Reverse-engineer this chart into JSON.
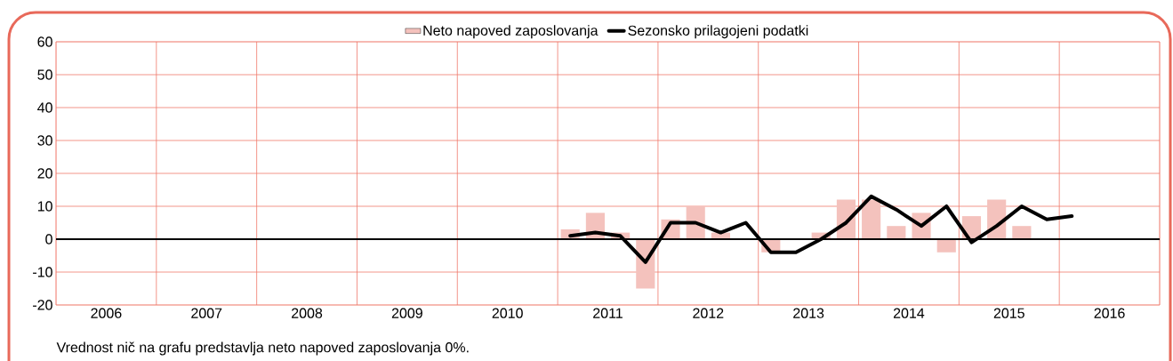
{
  "chart_data": {
    "type": "bar",
    "x": [
      2011.125,
      2011.375,
      2011.625,
      2011.875,
      2012.125,
      2012.375,
      2012.625,
      2012.875,
      2013.125,
      2013.375,
      2013.625,
      2013.875,
      2014.125,
      2014.375,
      2014.625,
      2014.875,
      2015.125,
      2015.375,
      2015.625,
      2015.875,
      2016.125
    ],
    "series": [
      {
        "name": "Neto napoved zaposlovanja",
        "color": "#f4c2bd",
        "values": [
          3,
          8,
          2,
          -15,
          6,
          10,
          2,
          null,
          -4,
          null,
          2,
          12,
          12,
          4,
          8,
          -4,
          7,
          12,
          4,
          null,
          null
        ]
      },
      {
        "name": "Sezonsko prilagojeni podatki",
        "type": "line",
        "color": "#000000",
        "values": [
          1,
          2,
          1,
          -7,
          5,
          5,
          2,
          5,
          -4,
          -4,
          0,
          5,
          13,
          9,
          4,
          10,
          -1,
          4,
          10,
          6,
          7
        ]
      }
    ],
    "xlim": [
      2006,
      2017
    ],
    "xticks": [
      {
        "value": 2006,
        "label": null
      },
      {
        "value": 2007,
        "label": null
      },
      {
        "value": 2008,
        "label": null
      },
      {
        "value": 2009,
        "label": null
      },
      {
        "value": 2010,
        "label": null
      },
      {
        "value": 2011,
        "label": null
      },
      {
        "value": 2012,
        "label": null
      },
      {
        "value": 2013,
        "label": null
      },
      {
        "value": 2014,
        "label": null
      },
      {
        "value": 2015,
        "label": null
      },
      {
        "value": 2016,
        "label": null
      },
      {
        "value": 2017,
        "label": null
      },
      {
        "value": 2006.5,
        "label": "2006"
      },
      {
        "value": 2007.5,
        "label": "2007"
      },
      {
        "value": 2008.5,
        "label": "2008"
      },
      {
        "value": 2009.5,
        "label": "2009"
      },
      {
        "value": 2010.5,
        "label": "2010"
      },
      {
        "value": 2011.5,
        "label": "2011"
      },
      {
        "value": 2012.5,
        "label": "2012"
      },
      {
        "value": 2013.5,
        "label": "2013"
      },
      {
        "value": 2014.5,
        "label": "2014"
      },
      {
        "value": 2015.5,
        "label": "2015"
      },
      {
        "value": 2016.5,
        "label": "2016"
      }
    ],
    "ylim": [
      -20,
      60
    ],
    "yticks": [
      -20,
      -10,
      0,
      10,
      20,
      30,
      40,
      50,
      60
    ],
    "grid": true,
    "legend": "top",
    "ref_lines": [
      {
        "axis": "y",
        "value": 0,
        "color": "#000000"
      }
    ],
    "annotations": [
      "Vrednost nič na grafu predstavlja neto napoved zaposlovanja 0%."
    ]
  }
}
